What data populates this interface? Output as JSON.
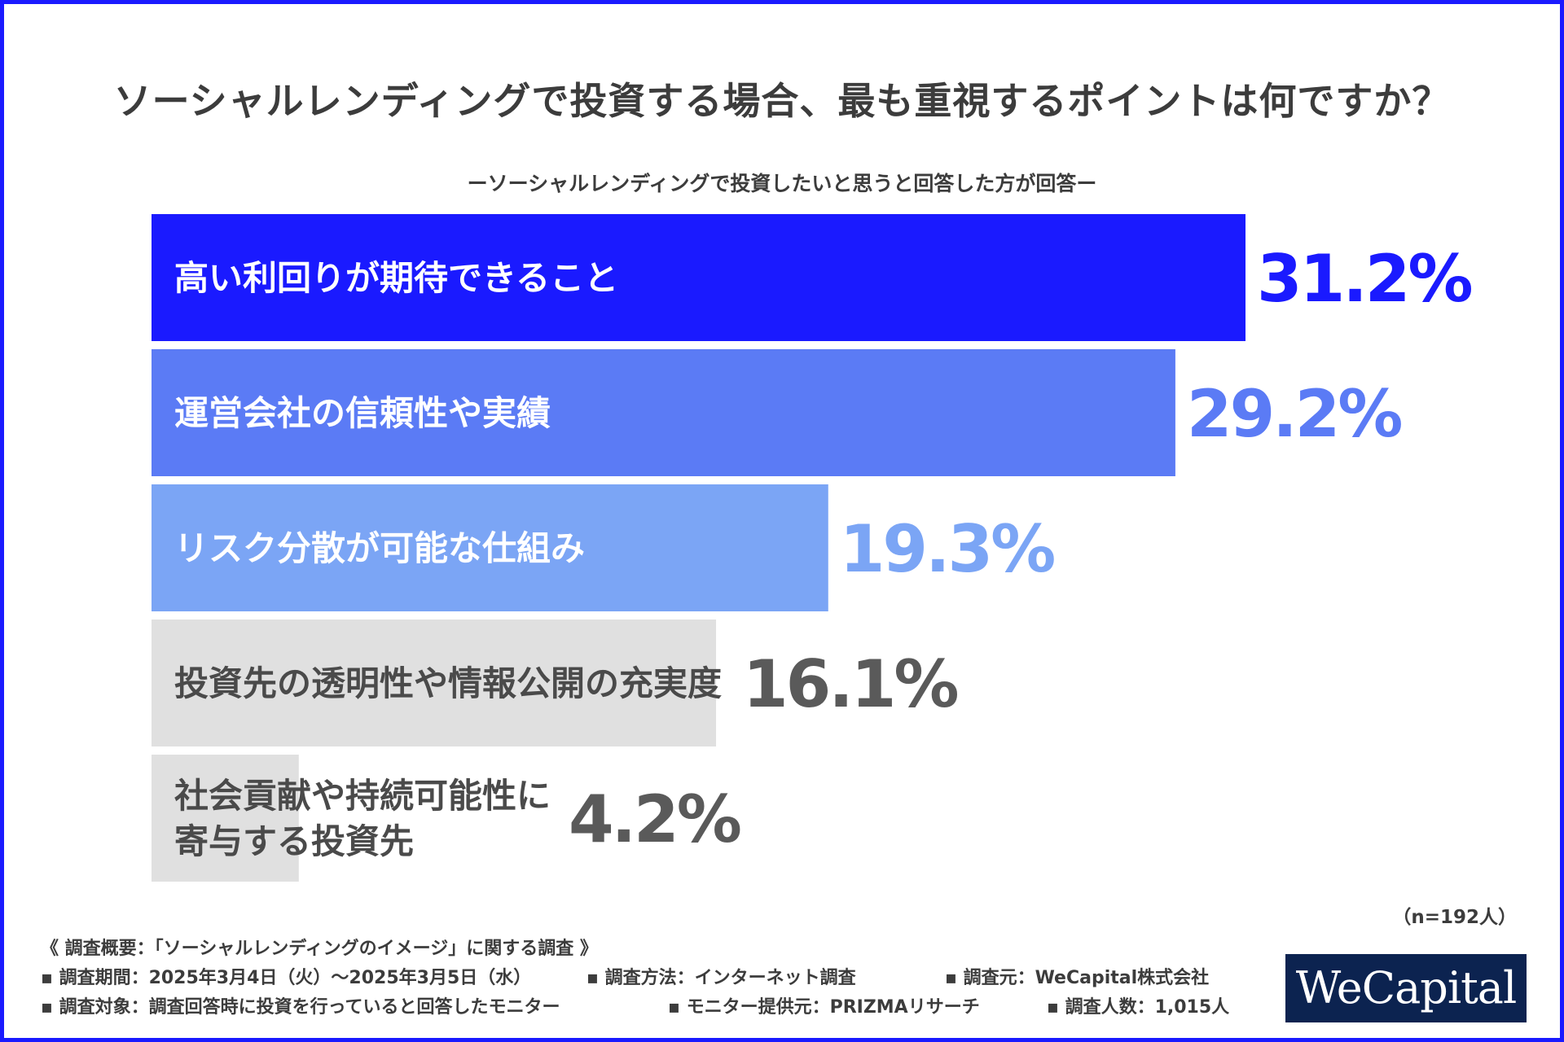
{
  "chart_data": {
    "type": "bar",
    "orientation": "horizontal",
    "title": "ソーシャルレンディングで投資する場合、最も重視するポイントは何ですか？",
    "subtitle": "ーソーシャルレンディングで投資したいと思うと回答した方が回答ー",
    "categories": [
      "高い利回りが期待できること",
      "運営会社の信頼性や実績",
      "リスク分散が可能な仕組み",
      "投資先の透明性や情報公開の充実度",
      "社会貢献や持続可能性に寄与する投資先"
    ],
    "category_lines": [
      [
        "高い利回りが期待できること"
      ],
      [
        "運営会社の信頼性や実績"
      ],
      [
        "リスク分散が可能な仕組み"
      ],
      [
        "投資先の透明性や情報公開の充実度"
      ],
      [
        "社会貢献や持続可能性に",
        "寄与する投資先"
      ]
    ],
    "values": [
      31.2,
      29.2,
      19.3,
      16.1,
      4.2
    ],
    "value_labels": [
      "31.2%",
      "29.2%",
      "19.3%",
      "16.1%",
      "4.2%"
    ],
    "bar_colors": [
      "#1a1aff",
      "#5b7bf5",
      "#7ba5f5",
      "#e0e0e0",
      "#e0e0e0"
    ],
    "label_colors": [
      "#ffffff",
      "#ffffff",
      "#ffffff",
      "#4a4a4a",
      "#4a4a4a"
    ],
    "value_colors": [
      "#1a1aff",
      "#5b7bf5",
      "#7ba5f5",
      "#5a5a5a",
      "#5a5a5a"
    ],
    "xlim": [
      0,
      31.2
    ],
    "grid": false,
    "legend": "none"
  },
  "sample_size": "（n=192人）",
  "footer": {
    "heading": "《 調査概要：「ソーシャルレンディングのイメージ」に関する調査 》",
    "period": "▪ 調査期間：2025年3月4日（火）〜2025年3月5日（水）",
    "method": "▪ 調査方法：インターネット調査",
    "organizer": "▪ 調査元：WeCapital株式会社",
    "target": "▪ 調査対象：調査回答時に投資を行っていると回答したモニター",
    "provider": "▪ モニター提供元：PRIZMAリサーチ",
    "count": "▪ 調査人数：1,015人"
  },
  "logo": {
    "text": "WeCapital",
    "background": "#0c2350"
  },
  "accent_color": "#1a1aff"
}
